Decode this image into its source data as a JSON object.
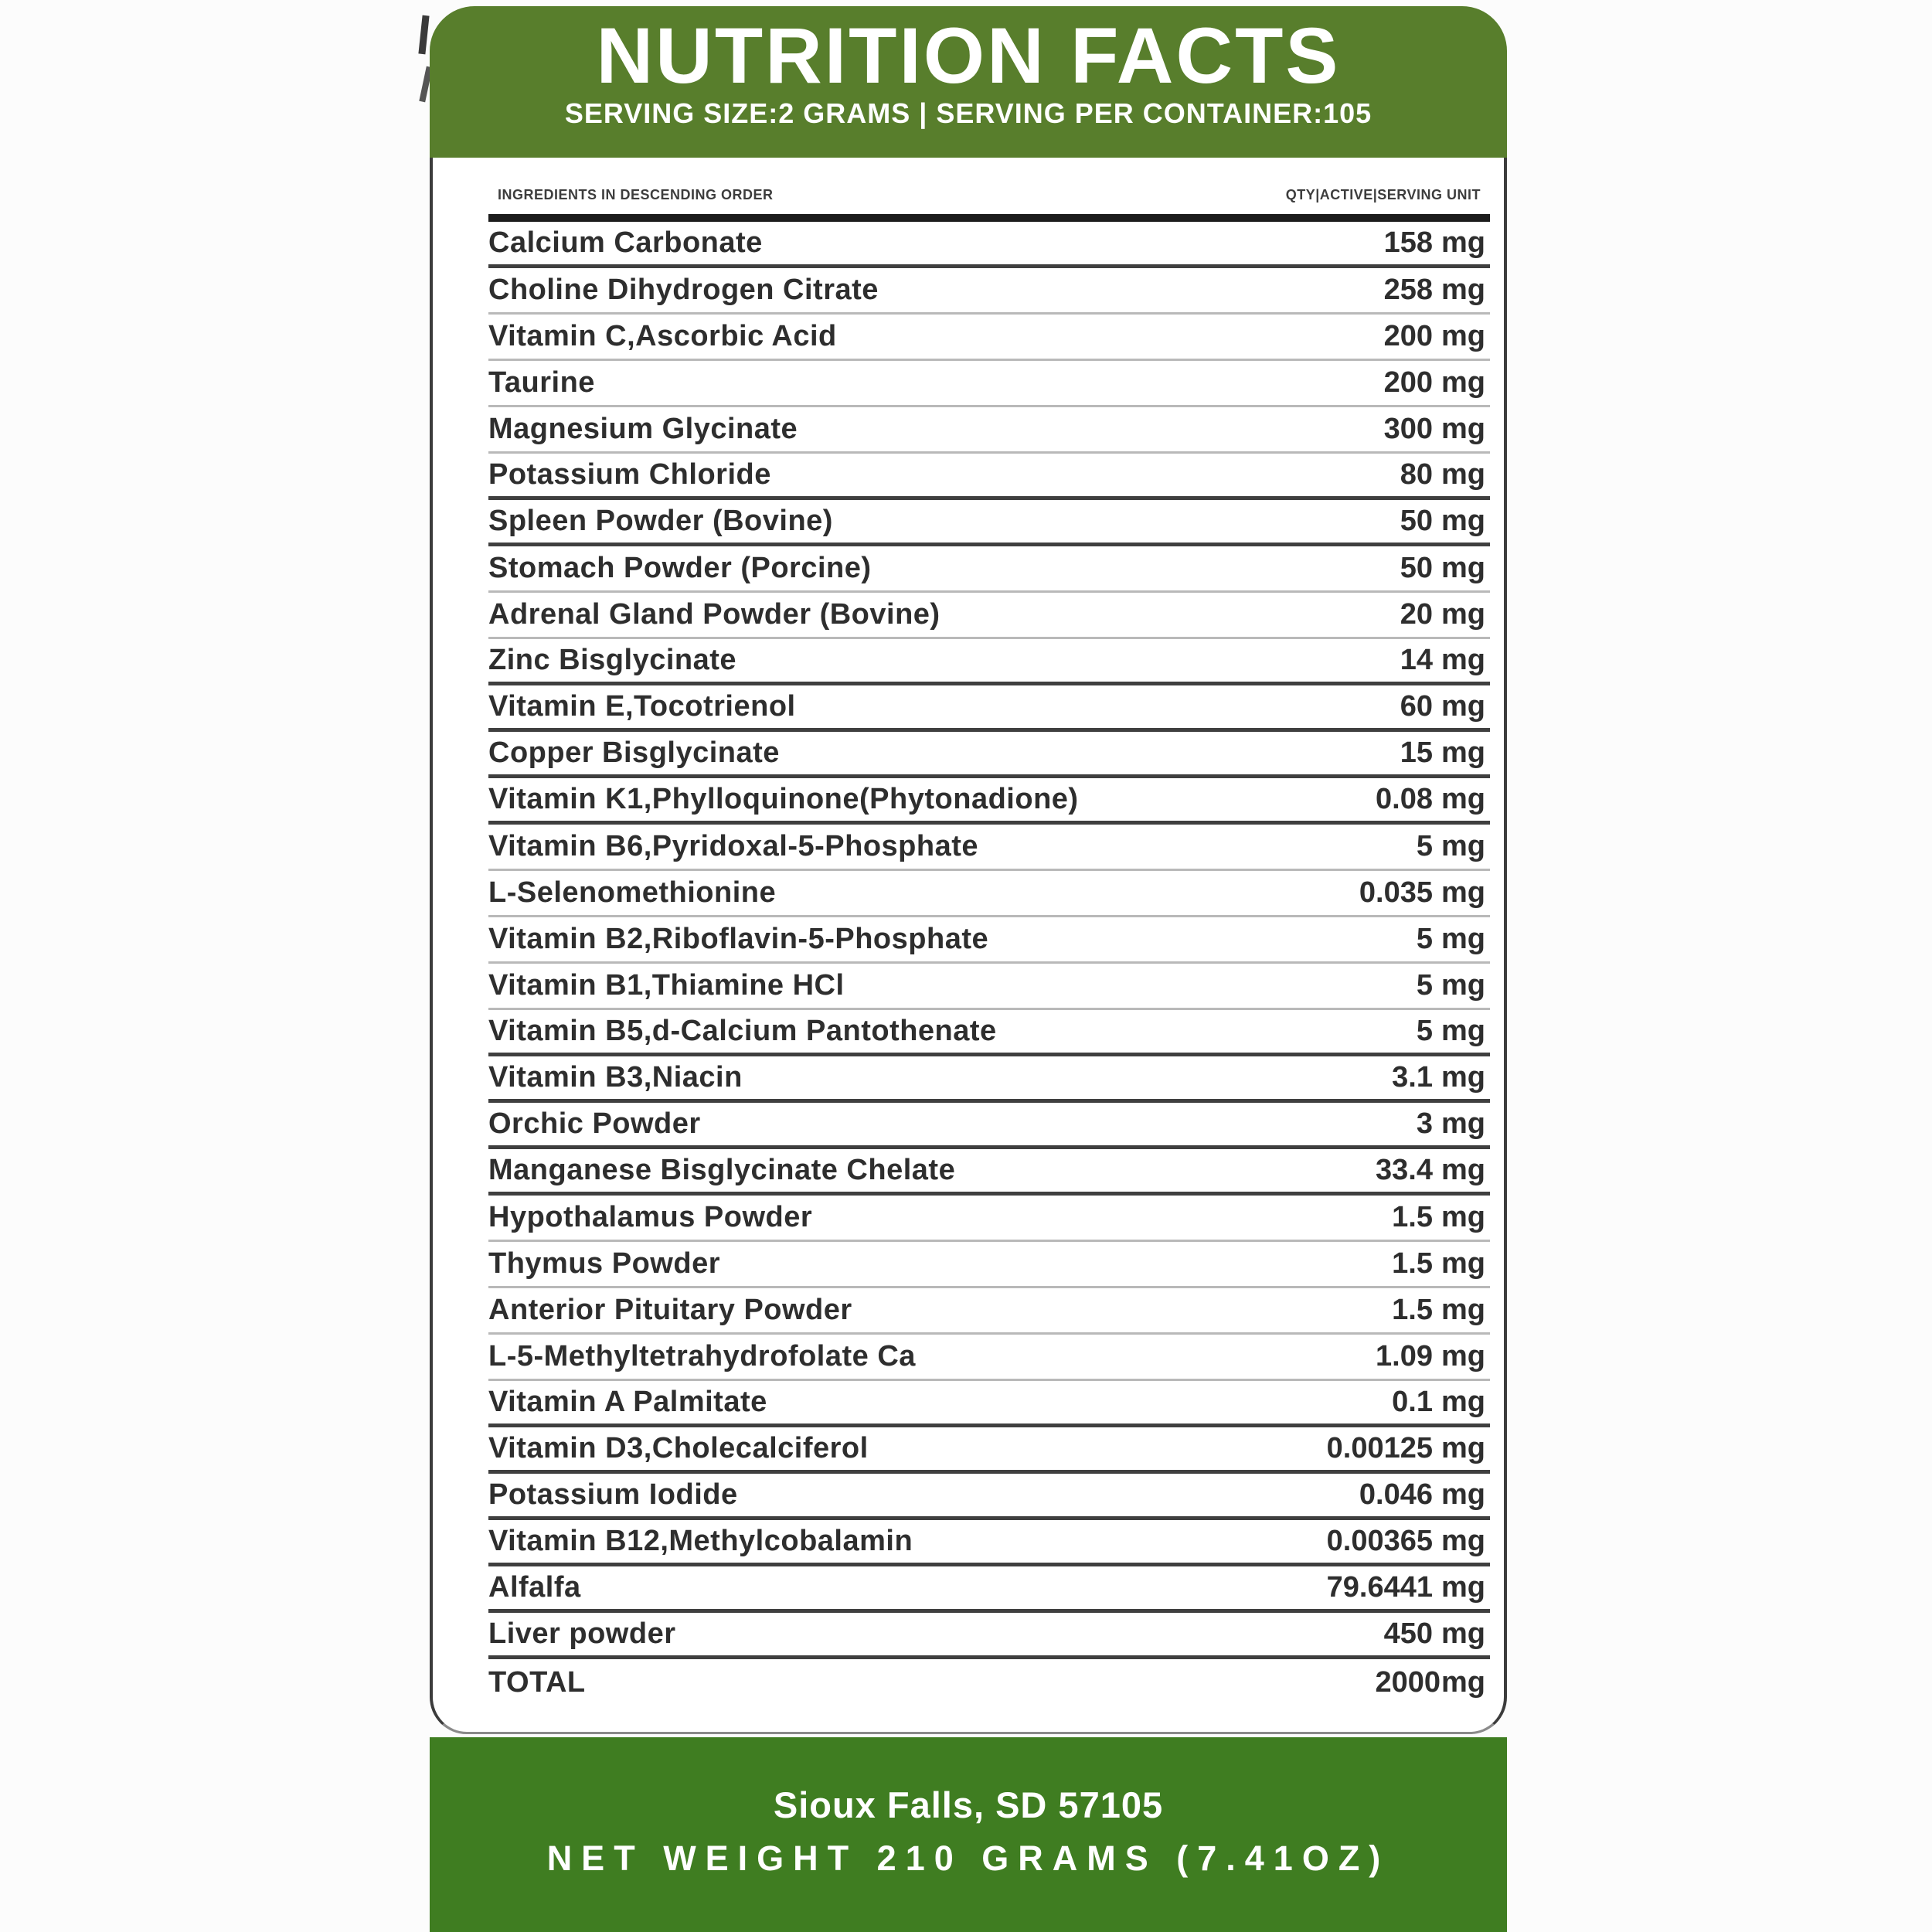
{
  "colors": {
    "header_green": "#587e2c",
    "footer_green": "#3f7d21",
    "text_dark": "#2e2e2e"
  },
  "header": {
    "title": "NUTRITION FACTS",
    "subtitle": "SERVING SIZE:2 GRAMS | SERVING PER CONTAINER:105"
  },
  "table": {
    "col_left": "INGREDIENTS IN DESCENDING ORDER",
    "col_right": "QTY|ACTIVE|SERVING UNIT",
    "rows": [
      {
        "name": "Calcium Carbonate",
        "qty": "158",
        "unit": "mg",
        "sep": "heavy"
      },
      {
        "name": "Choline Dihydrogen Citrate",
        "qty": "258",
        "unit": "mg",
        "sep": "light"
      },
      {
        "name": "Vitamin C,Ascorbic Acid",
        "qty": "200",
        "unit": "mg",
        "sep": "light"
      },
      {
        "name": "Taurine",
        "qty": "200",
        "unit": "mg",
        "sep": "light"
      },
      {
        "name": "Magnesium Glycinate",
        "qty": "300",
        "unit": "mg",
        "sep": "light"
      },
      {
        "name": "Potassium Chloride",
        "qty": "80",
        "unit": "mg",
        "sep": "heavy"
      },
      {
        "name": "Spleen Powder (Bovine)",
        "qty": "50",
        "unit": "mg",
        "sep": "heavy"
      },
      {
        "name": "Stomach Powder (Porcine)",
        "qty": "50",
        "unit": "mg",
        "sep": "light"
      },
      {
        "name": "Adrenal Gland Powder (Bovine)",
        "qty": "20",
        "unit": "mg",
        "sep": "light"
      },
      {
        "name": "Zinc Bisglycinate",
        "qty": "14",
        "unit": "mg",
        "sep": "heavy"
      },
      {
        "name": "Vitamin E,Tocotrienol",
        "qty": "60",
        "unit": "mg",
        "sep": "heavy"
      },
      {
        "name": "Copper Bisglycinate",
        "qty": "15",
        "unit": "mg",
        "sep": "heavy"
      },
      {
        "name": "Vitamin K1,Phylloquinone(Phytonadione)",
        "qty": "0.08",
        "unit": "mg",
        "sep": "heavy"
      },
      {
        "name": "Vitamin B6,Pyridoxal-5-Phosphate",
        "qty": "5",
        "unit": "mg",
        "sep": "light"
      },
      {
        "name": "L-Selenomethionine",
        "qty": "0.035",
        "unit": "mg",
        "sep": "light"
      },
      {
        "name": "Vitamin B2,Riboflavin-5-Phosphate",
        "qty": "5",
        "unit": "mg",
        "sep": "light"
      },
      {
        "name": "Vitamin B1,Thiamine HCl",
        "qty": "5",
        "unit": "mg",
        "sep": "light"
      },
      {
        "name": "Vitamin B5,d-Calcium Pantothenate",
        "qty": "5",
        "unit": "mg",
        "sep": "heavy"
      },
      {
        "name": "Vitamin B3,Niacin",
        "qty": "3.1",
        "unit": "mg",
        "sep": "heavy"
      },
      {
        "name": "Orchic Powder",
        "qty": "3",
        "unit": "mg",
        "sep": "heavy"
      },
      {
        "name": "Manganese Bisglycinate Chelate",
        "qty": "33.4",
        "unit": "mg",
        "sep": "heavy"
      },
      {
        "name": "Hypothalamus Powder",
        "qty": "1.5",
        "unit": "mg",
        "sep": "light"
      },
      {
        "name": "Thymus Powder",
        "qty": "1.5",
        "unit": "mg",
        "sep": "light"
      },
      {
        "name": "Anterior Pituitary Powder",
        "qty": "1.5",
        "unit": "mg",
        "sep": "light"
      },
      {
        "name": "L-5-Methyltetrahydrofolate Ca",
        "qty": "1.09",
        "unit": "mg",
        "sep": "light"
      },
      {
        "name": "Vitamin A Palmitate",
        "qty": "0.1",
        "unit": "mg",
        "sep": "heavy"
      },
      {
        "name": "Vitamin D3,Cholecalciferol",
        "qty": "0.00125",
        "unit": "mg",
        "sep": "heavy"
      },
      {
        "name": "Potassium Iodide",
        "qty": "0.046",
        "unit": "mg",
        "sep": "heavy"
      },
      {
        "name": "Vitamin B12,Methylcobalamin",
        "qty": "0.00365",
        "unit": "mg",
        "sep": "heavy"
      },
      {
        "name": "Alfalfa",
        "qty": "79.6441",
        "unit": "mg",
        "sep": "heavy"
      },
      {
        "name": "Liver powder",
        "qty": "450",
        "unit": "mg",
        "sep": "heavy"
      },
      {
        "name": "TOTAL",
        "qty": "2000",
        "unit": "mg",
        "sep": "none",
        "nospace": true
      }
    ]
  },
  "footer": {
    "address": "Sioux Falls, SD 57105",
    "net_weight": "NET WEIGHT 210 GRAMS (7.41OZ)"
  }
}
